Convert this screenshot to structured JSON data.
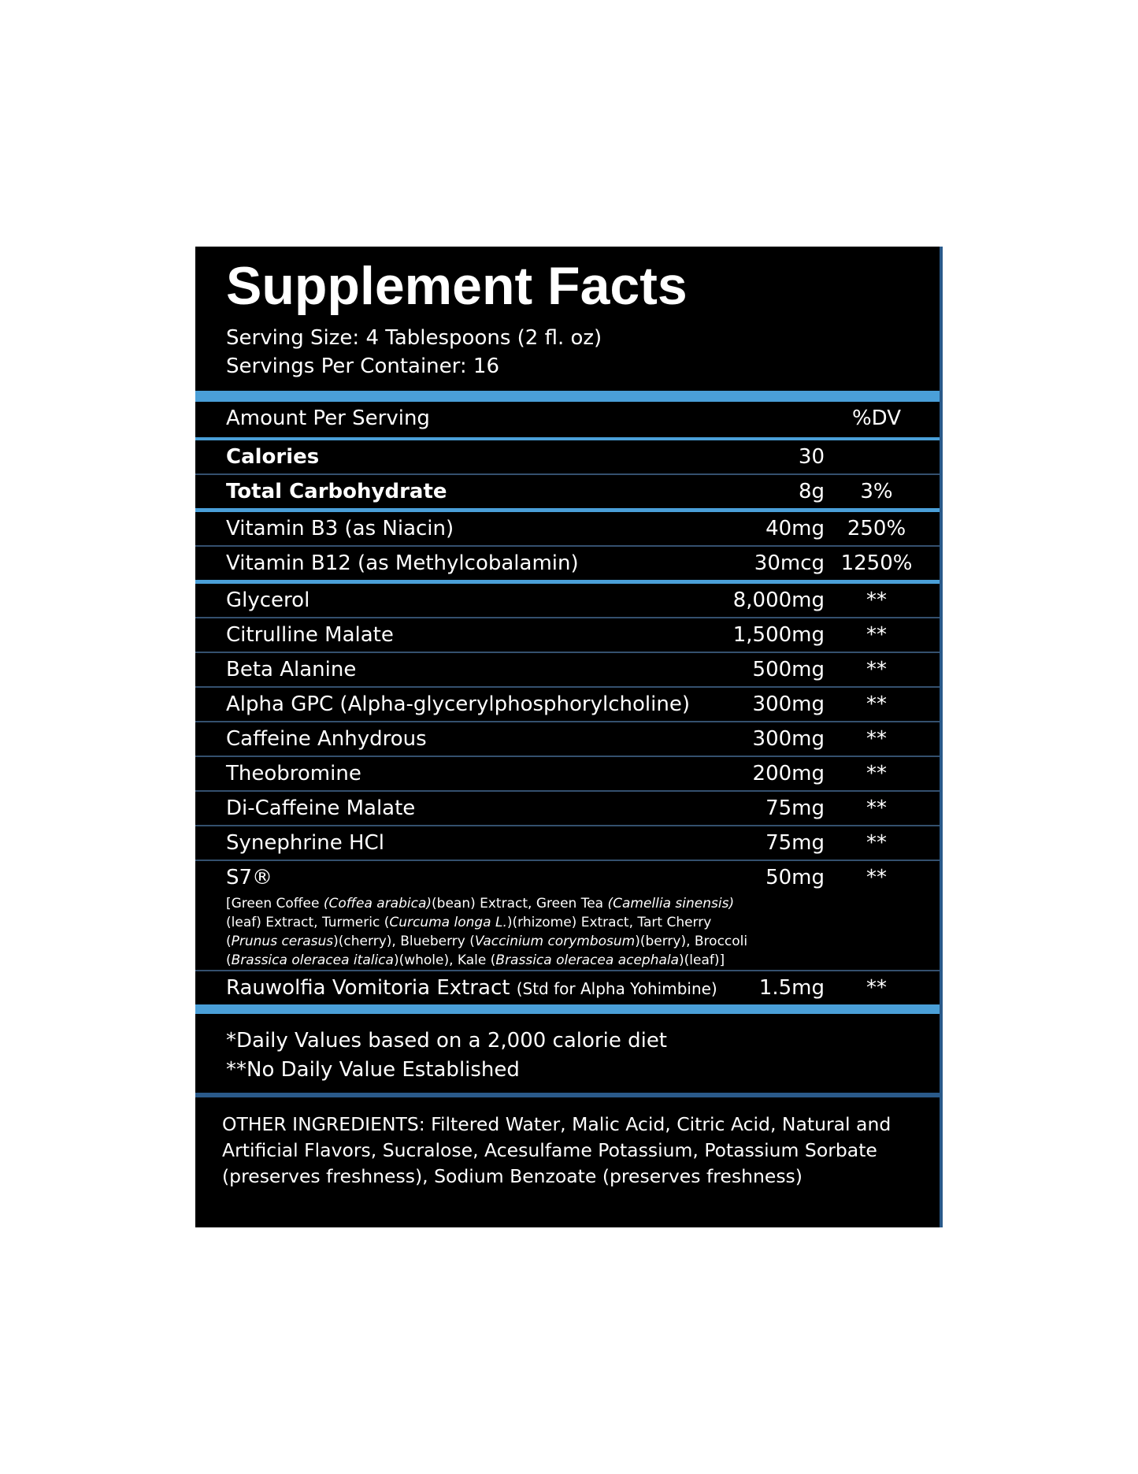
{
  "header": {
    "title": "Supplement Facts",
    "serving_size": "Serving Size: 4 Tablespoons (2 fl. oz)",
    "servings_per_container": "Servings Per Container: 16"
  },
  "columns": {
    "amount_per_serving": "Amount Per Serving",
    "dv": "%DV"
  },
  "sections": [
    {
      "rows": [
        {
          "name": "Calories",
          "amount": "30",
          "bold": true
        },
        {
          "name": "Total Carbohydrate",
          "amount": "8g",
          "dv": "3%",
          "bold": true
        }
      ]
    },
    {
      "rows": [
        {
          "name": "Vitamin B3 (as Niacin)",
          "amount": "40mg",
          "dv": "250%"
        },
        {
          "name": "Vitamin B12 (as Methylcobalamin)",
          "amount": "30mcg",
          "dv": "1250%"
        }
      ]
    },
    {
      "rows": [
        {
          "name": "Glycerol",
          "amount": "8,000mg",
          "dv": "**"
        },
        {
          "name": "Citrulline Malate",
          "amount": "1,500mg",
          "dv": "**"
        },
        {
          "name": "Beta Alanine",
          "amount": "500mg",
          "dv": "**"
        },
        {
          "name": "Alpha GPC (Alpha-glycerylphosphorylcholine)",
          "amount": "300mg",
          "dv": "**"
        },
        {
          "name": "Caffeine Anhydrous",
          "amount": "300mg",
          "dv": "**"
        },
        {
          "name": "Theobromine",
          "amount": "200mg",
          "dv": "**"
        },
        {
          "name": "Di-Caffeine Malate",
          "amount": "75mg",
          "dv": "**"
        },
        {
          "name": "Synephrine HCl",
          "amount": "75mg",
          "dv": "**"
        },
        {
          "name": "S7®",
          "amount": "50mg",
          "dv": "**",
          "description": [
            {
              "text": "[Green Coffee "
            },
            {
              "text": "(Coffea arabica)",
              "italic": true
            },
            {
              "text": "(bean) Extract, Green Tea "
            },
            {
              "text": "(Camellia sinensis)",
              "italic": true
            },
            {
              "text": "(leaf) Extract, Turmeric ("
            },
            {
              "text": "Curcuma longa L.",
              "italic": true
            },
            {
              "text": ")(rhizome) Extract, Tart Cherry ("
            },
            {
              "text": "Prunus cerasus",
              "italic": true
            },
            {
              "text": ")(cherry), Blueberry ("
            },
            {
              "text": "Vaccinium corymbosum",
              "italic": true
            },
            {
              "text": ")(berry), Broccoli ("
            },
            {
              "text": "Brassica oleracea italica",
              "italic": true
            },
            {
              "text": ")(whole), Kale ("
            },
            {
              "text": "Brassica oleracea acephala",
              "italic": true
            },
            {
              "text": ")(leaf)]"
            }
          ]
        },
        {
          "name": "Rauwolfia Vomitoria Extract",
          "qualifier": "(Std for Alpha Yohimbine)",
          "amount": "1.5mg",
          "dv": "**"
        }
      ]
    }
  ],
  "footnotes": [
    "*Daily Values based on a 2,000 calorie diet",
    "**No Daily Value Established"
  ],
  "other_ingredients": "OTHER INGREDIENTS: Filtered Water, Malic Acid, Citric Acid, Natural and Artificial Flavors, Sucralose, Acesulfame Potassium, Potassium Sorbate (preserves freshness), Sodium Benzoate (preserves freshness)"
}
